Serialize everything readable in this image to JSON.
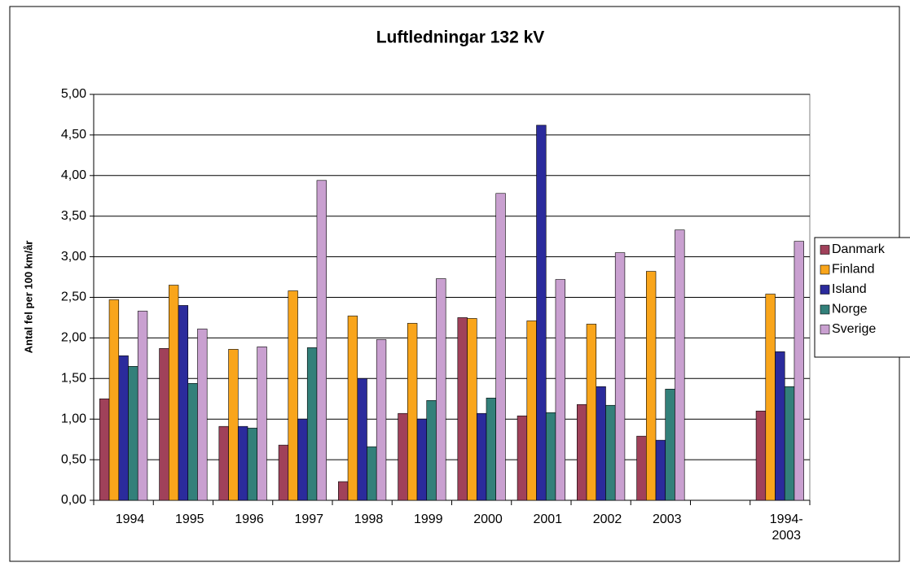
{
  "chart_data": {
    "type": "bar",
    "title": "Luftledningar 132 kV",
    "y_label": "Antal fel per 100 km/år",
    "categories": [
      "1994",
      "1995",
      "1996",
      "1997",
      "1998",
      "1999",
      "2000",
      "2001",
      "2002",
      "2003",
      null,
      "1994-\n2003"
    ],
    "series": [
      {
        "name": "Danmark",
        "color": "#a0415a",
        "values": [
          1.25,
          1.87,
          0.91,
          0.68,
          0.23,
          1.07,
          2.25,
          1.04,
          1.18,
          0.79,
          null,
          1.1
        ]
      },
      {
        "name": "Finland",
        "color": "#f9a51b",
        "values": [
          2.47,
          2.65,
          1.86,
          2.58,
          2.27,
          2.18,
          2.24,
          2.21,
          2.17,
          2.82,
          null,
          2.54
        ]
      },
      {
        "name": "Island",
        "color": "#2b2b9c",
        "values": [
          1.78,
          2.4,
          0.91,
          1.0,
          1.5,
          1.0,
          1.07,
          4.62,
          1.4,
          0.74,
          null,
          1.83
        ]
      },
      {
        "name": "Norge",
        "color": "#33807a",
        "values": [
          1.65,
          1.44,
          0.89,
          1.88,
          0.66,
          1.23,
          1.26,
          1.08,
          1.17,
          1.37,
          null,
          1.4
        ]
      },
      {
        "name": "Sverige",
        "color": "#c9a0d0",
        "values": [
          2.33,
          2.11,
          1.89,
          3.94,
          1.98,
          2.73,
          3.78,
          2.72,
          3.05,
          3.33,
          null,
          3.19
        ]
      }
    ],
    "ylim": [
      0,
      5
    ],
    "yticks": [
      {
        "value": 0,
        "label": "0,00"
      },
      {
        "value": 0.5,
        "label": "0,50"
      },
      {
        "value": 1,
        "label": "1,00"
      },
      {
        "value": 1.5,
        "label": "1,50"
      },
      {
        "value": 2,
        "label": "2,00"
      },
      {
        "value": 2.5,
        "label": "2,50"
      },
      {
        "value": 3,
        "label": "3,00"
      },
      {
        "value": 3.5,
        "label": "3,50"
      },
      {
        "value": 4,
        "label": "4,00"
      },
      {
        "value": 4.5,
        "label": "4,50"
      },
      {
        "value": 5,
        "label": "5,00"
      }
    ],
    "grid": true,
    "legend": "right"
  }
}
